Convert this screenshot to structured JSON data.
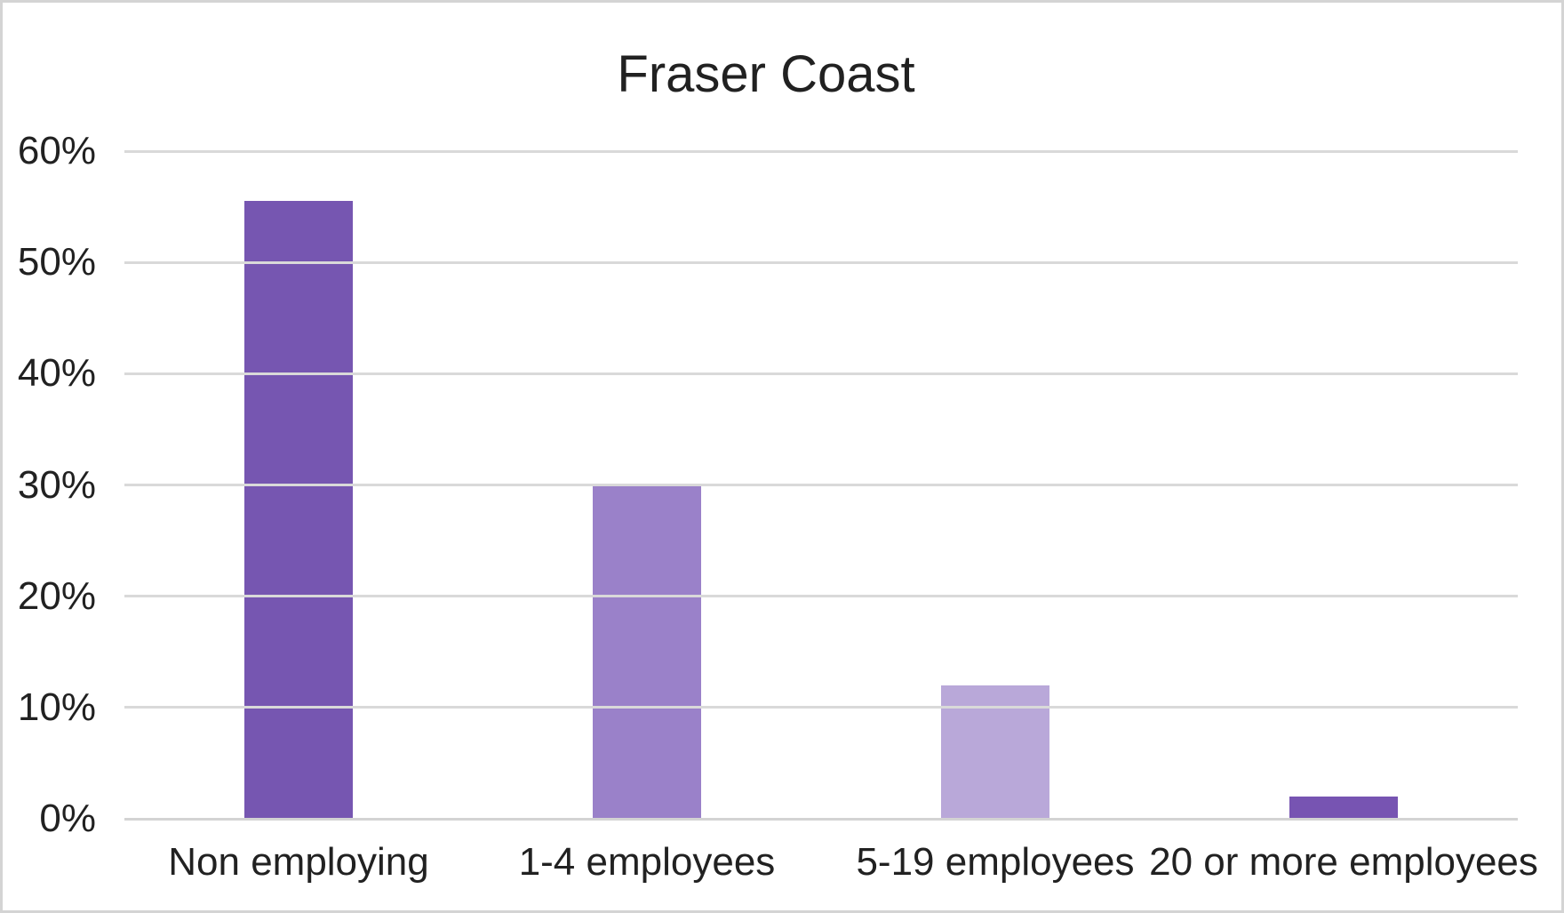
{
  "chart": {
    "title": "Fraser Coast"
  },
  "chart_data": {
    "type": "bar",
    "title": "Fraser Coast",
    "categories": [
      "Non employing",
      "1-4 employees",
      "5-19 employees",
      "20 or more employees"
    ],
    "values": [
      55.5,
      30.1,
      12.0,
      2.0
    ],
    "unit": "%",
    "bar_colors": [
      "#7656B1",
      "#9A81C9",
      "#B9A8D9",
      "#7754B2"
    ],
    "xlabel": "",
    "ylabel": "",
    "ylim": [
      0,
      60
    ],
    "yticks": [
      60,
      50,
      40,
      30,
      20,
      10,
      0
    ],
    "ytick_labels": [
      "60%",
      "50%",
      "40%",
      "30%",
      "20%",
      "10%",
      "0%"
    ],
    "grid": "horizontal",
    "gridline_color": "#D9D9D9",
    "plot_background": "#FFFFFF",
    "legend": "none"
  }
}
